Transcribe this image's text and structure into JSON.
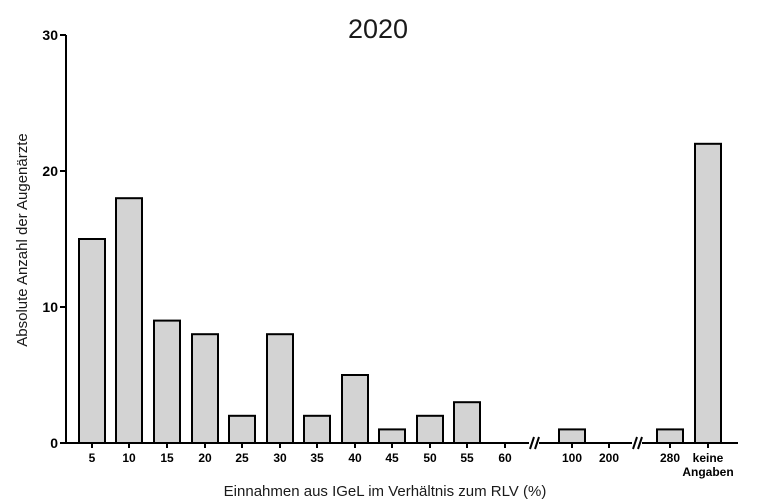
{
  "chart_data": {
    "type": "bar",
    "title": "2020",
    "xlabel": "Einnahmen aus IGeL im Verhältnis zum RLV (%)",
    "ylabel": "Absolute Anzahl der Augenärzte",
    "ylim": [
      0,
      30
    ],
    "yticks": [
      "0",
      "10",
      "20",
      "30"
    ],
    "categories": [
      "5",
      "10",
      "15",
      "20",
      "25",
      "30",
      "35",
      "40",
      "45",
      "50",
      "55",
      "60",
      "100",
      "200",
      "280",
      "keine Angaben"
    ],
    "values": [
      15,
      18,
      9,
      8,
      2,
      8,
      2,
      5,
      1,
      2,
      3,
      0,
      1,
      0,
      1,
      22
    ],
    "axis_breaks_after": [
      "60",
      "200"
    ],
    "bar_color": "#d3d3d3",
    "bar_edge_color": "#000000",
    "grid": false
  }
}
